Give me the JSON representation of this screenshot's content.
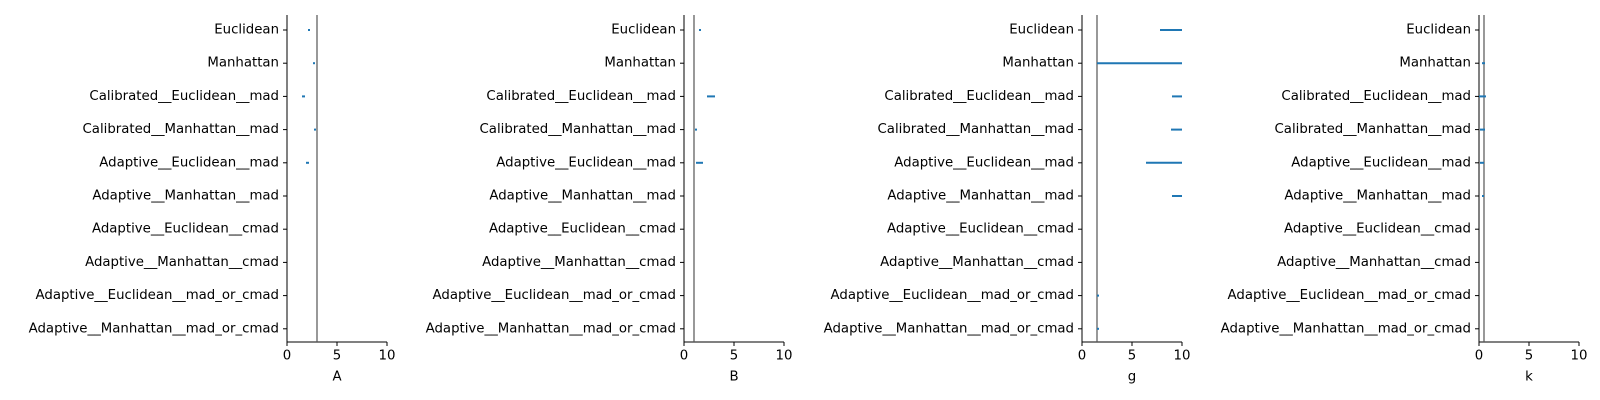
{
  "colors": {
    "interval": "#1f77b4",
    "reference": "#555555",
    "axis": "#000000"
  },
  "chart_data": [
    {
      "type": "interval",
      "title": "",
      "xlabel": "A",
      "ylabel": "",
      "xlim": [
        0,
        10
      ],
      "xticks": [
        0,
        5,
        10
      ],
      "reference_line": 3.0,
      "categories": [
        "Euclidean",
        "Manhattan",
        "Calibrated__Euclidean__mad",
        "Calibrated__Manhattan__mad",
        "Adaptive__Euclidean__mad",
        "Adaptive__Manhattan__mad",
        "Adaptive__Euclidean__cmad",
        "Adaptive__Manhattan__cmad",
        "Adaptive__Euclidean__mad_or_cmad",
        "Adaptive__Manhattan__mad_or_cmad"
      ],
      "intervals": [
        [
          2.1,
          2.3
        ],
        [
          2.6,
          2.8
        ],
        [
          1.5,
          1.8
        ],
        [
          2.7,
          2.8
        ],
        [
          1.9,
          2.2
        ],
        null,
        null,
        null,
        null,
        null
      ]
    },
    {
      "type": "interval",
      "title": "",
      "xlabel": "B",
      "ylabel": "",
      "xlim": [
        0,
        10
      ],
      "xticks": [
        0,
        5,
        10
      ],
      "reference_line": 1.0,
      "categories": [
        "Euclidean",
        "Manhattan",
        "Calibrated__Euclidean__mad",
        "Calibrated__Manhattan__mad",
        "Adaptive__Euclidean__mad",
        "Adaptive__Manhattan__mad",
        "Adaptive__Euclidean__cmad",
        "Adaptive__Manhattan__cmad",
        "Adaptive__Euclidean__mad_or_cmad",
        "Adaptive__Manhattan__mad_or_cmad"
      ],
      "intervals": [
        [
          1.5,
          1.7
        ],
        null,
        [
          2.3,
          3.1
        ],
        [
          1.1,
          1.3
        ],
        [
          1.2,
          1.9
        ],
        null,
        null,
        null,
        null,
        null
      ]
    },
    {
      "type": "interval",
      "title": "",
      "xlabel": "g",
      "ylabel": "",
      "xlim": [
        0,
        10
      ],
      "xticks": [
        0,
        5,
        10
      ],
      "reference_line": 1.5,
      "categories": [
        "Euclidean",
        "Manhattan",
        "Calibrated__Euclidean__mad",
        "Calibrated__Manhattan__mad",
        "Adaptive__Euclidean__mad",
        "Adaptive__Manhattan__mad",
        "Adaptive__Euclidean__cmad",
        "Adaptive__Manhattan__cmad",
        "Adaptive__Euclidean__mad_or_cmad",
        "Adaptive__Manhattan__mad_or_cmad"
      ],
      "intervals": [
        [
          7.8,
          10.0
        ],
        [
          1.5,
          10.0
        ],
        [
          9.0,
          10.0
        ],
        [
          8.9,
          10.0
        ],
        [
          6.4,
          10.0
        ],
        [
          9.0,
          10.0
        ],
        null,
        null,
        [
          1.5,
          1.7
        ],
        [
          1.5,
          1.7
        ]
      ]
    },
    {
      "type": "interval",
      "title": "",
      "xlabel": "k",
      "ylabel": "",
      "xlim": [
        0,
        10
      ],
      "xticks": [
        0,
        5,
        10
      ],
      "reference_line": 0.5,
      "categories": [
        "Euclidean",
        "Manhattan",
        "Calibrated__Euclidean__mad",
        "Calibrated__Manhattan__mad",
        "Adaptive__Euclidean__mad",
        "Adaptive__Manhattan__mad",
        "Adaptive__Euclidean__cmad",
        "Adaptive__Manhattan__cmad",
        "Adaptive__Euclidean__mad_or_cmad",
        "Adaptive__Manhattan__mad_or_cmad"
      ],
      "intervals": [
        null,
        [
          0.3,
          0.6
        ],
        [
          0.0,
          0.7
        ],
        [
          0.1,
          0.6
        ],
        [
          0.1,
          0.5
        ],
        [
          0.3,
          0.5
        ],
        null,
        null,
        null,
        null
      ]
    }
  ]
}
